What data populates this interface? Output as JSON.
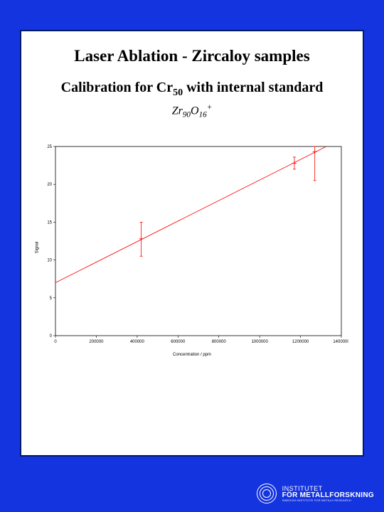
{
  "page": {
    "bg_color": "#1434e0",
    "panel_bg": "#ffffff",
    "panel_border": "#001a66"
  },
  "header": {
    "title": "Laser Ablation - Zircaloy samples",
    "subtitle_pre": "Calibration for Cr",
    "subtitle_sub": "50",
    "subtitle_post": " with internal standard",
    "formula_a": "Zr",
    "formula_a_sub": "90",
    "formula_b": "O",
    "formula_b_sub": "16",
    "formula_sup": "+"
  },
  "chart": {
    "type": "scatter-with-fit",
    "plot_bg": "#ffffff",
    "axis_color": "#000000",
    "series_color": "#ff0000",
    "line_width": 0.8,
    "marker_size": 3,
    "xlabel": "Concentration / ppm",
    "ylabel": "Signal",
    "xlim": [
      0,
      1400000
    ],
    "ylim": [
      0,
      25
    ],
    "xticks": [
      0,
      200000,
      400000,
      600000,
      800000,
      1000000,
      1200000,
      1400000
    ],
    "xtick_labels": [
      "0",
      "200000",
      "400000",
      "600000",
      "800000",
      "1000000",
      "1200000",
      "1400000"
    ],
    "yticks": [
      0,
      5,
      10,
      15,
      20,
      25
    ],
    "ytick_labels": [
      "0",
      "5",
      "10",
      "15",
      "20",
      "25"
    ],
    "tick_fontsize": 6,
    "fit_line": {
      "x0": 0,
      "y0": 7,
      "x1": 1400000,
      "y1": 26
    },
    "points": [
      {
        "x": 420000,
        "y": 12.8,
        "err_lo": 10.5,
        "err_hi": 15.0
      },
      {
        "x": 1170000,
        "y": 22.8,
        "err_lo": 22.0,
        "err_hi": 23.6
      },
      {
        "x": 1270000,
        "y": 24.3,
        "err_lo": 20.5,
        "err_hi": 25.0
      }
    ]
  },
  "footer": {
    "line1": "INSTITUTET",
    "line2": "FÖR METALLFORSKNING",
    "line3": "SWEDISH INSTITUTE FOR METALS RESEARCH",
    "text_color": "#ffffff"
  }
}
